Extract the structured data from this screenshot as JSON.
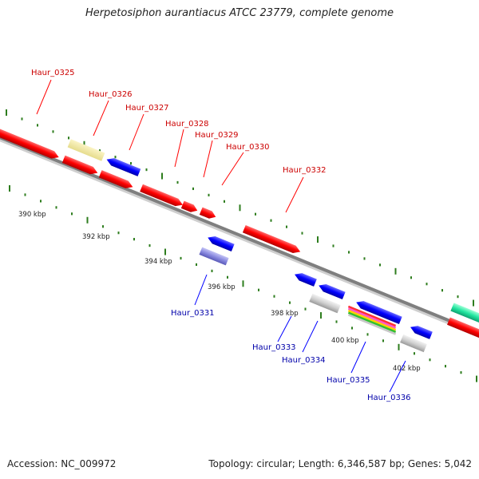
{
  "title": "Herpetosiphon aurantiacus ATCC 23779, complete genome",
  "footer": {
    "accession": "Accession: NC_009972",
    "summary": "Topology: circular; Length: 6,346,587 bp; Genes: 5,042"
  },
  "colors": {
    "forward_gene": "#ff0000",
    "reverse_gene": "#0000ff",
    "forward_label": "#cc0000",
    "reverse_label": "#0000aa",
    "pseudo_gene": "#f0e68c",
    "rna_gene": "#9090e0",
    "grey_gene": "#c8c8c8",
    "tick": "#2e7d1e",
    "backbone": "#808080"
  },
  "ruler_labels": [
    "390 kbp",
    "392 kbp",
    "394 kbp",
    "396 kbp",
    "398 kbp",
    "400 kbp",
    "402 kbp"
  ],
  "forward_labels": [
    "Haur_0325",
    "Haur_0326",
    "Haur_0327",
    "Haur_0328",
    "Haur_0329",
    "Haur_0330",
    "Haur_0332"
  ],
  "reverse_labels": [
    "Haur_0331",
    "Haur_0333",
    "Haur_0334",
    "Haur_0335",
    "Haur_0336"
  ]
}
